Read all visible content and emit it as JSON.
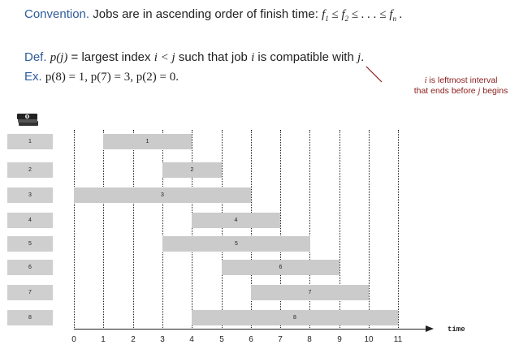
{
  "convention": {
    "label": "Convention.",
    "text": "Jobs are in ascending order of finish time:",
    "formula": [
      "f",
      "1",
      " ≤ ",
      "f",
      "2",
      " ≤ . . . ≤ ",
      "f",
      "n",
      " ."
    ]
  },
  "definition": {
    "label": "Def.",
    "pj": "p(j)",
    "eq": " = ",
    "text1": "largest index ",
    "cond": "i < j",
    "text2": " such that job ",
    "i": "i",
    "text3": " is compatible with ",
    "j": "j",
    "dot": "."
  },
  "example": {
    "label": "Ex.",
    "text": "p(8) = 1, p(7) = 3, p(2) = 0."
  },
  "note": {
    "i": "i",
    "line1_rest": " is leftmost interval",
    "line2_start": "that ends before ",
    "j": "j",
    "line2_end": " begins"
  },
  "jobs": [
    {
      "label": "1",
      "start": 1,
      "end": 4
    },
    {
      "label": "2",
      "start": 3,
      "end": 5
    },
    {
      "label": "3",
      "start": 0,
      "end": 6
    },
    {
      "label": "4",
      "start": 4,
      "end": 7
    },
    {
      "label": "5",
      "start": 3,
      "end": 8
    },
    {
      "label": "6",
      "start": 5,
      "end": 9
    },
    {
      "label": "7",
      "start": 6,
      "end": 10
    },
    {
      "label": "8",
      "start": 4,
      "end": 11
    }
  ],
  "axis": {
    "ticks": [
      "0",
      "1",
      "2",
      "3",
      "4",
      "5",
      "6",
      "7",
      "8",
      "9",
      "10",
      "11"
    ],
    "label": "time"
  },
  "colors": {
    "blue_label": "#2f5b9c",
    "note": "#8b1a1a",
    "bar": "#cbcbcb"
  },
  "icon": "money-stack-icon"
}
